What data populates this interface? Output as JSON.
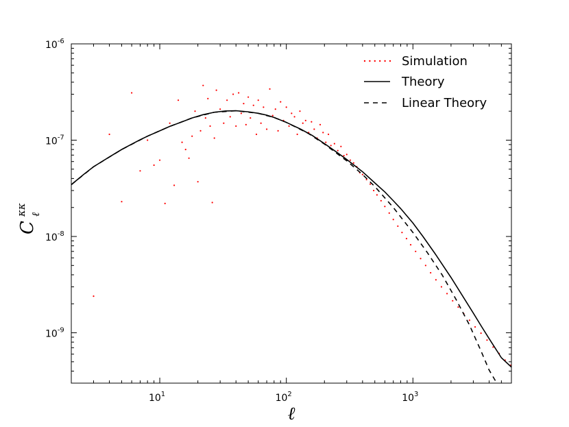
{
  "chart_data": {
    "type": "scatter",
    "xlabel": "ℓ",
    "ylabel": {
      "base": "C",
      "sub": "ℓ",
      "sup": "κκ"
    },
    "x_scale": "log",
    "y_scale": "log",
    "xlim": [
      2,
      6000
    ],
    "ylim": [
      3e-10,
      1e-06
    ],
    "x_ticks": [
      {
        "value": 10,
        "base": "10",
        "exp": "1"
      },
      {
        "value": 100,
        "base": "10",
        "exp": "2"
      },
      {
        "value": 1000,
        "base": "10",
        "exp": "3"
      }
    ],
    "y_ticks": [
      {
        "value": 1e-06,
        "base": "10",
        "exp": "-6"
      },
      {
        "value": 1e-07,
        "base": "10",
        "exp": "-7"
      },
      {
        "value": 1e-08,
        "base": "10",
        "exp": "-8"
      },
      {
        "value": 1e-09,
        "base": "10",
        "exp": "-9"
      }
    ],
    "grid": false,
    "legend_position": "top-right",
    "series": [
      {
        "name": "Simulation",
        "style": "red-dots",
        "color": "#ff0000",
        "points": [
          [
            3,
            2.4e-09
          ],
          [
            4,
            1.15e-07
          ],
          [
            5,
            2.3e-08
          ],
          [
            6,
            3.1e-07
          ],
          [
            7,
            4.8e-08
          ],
          [
            8,
            1e-07
          ],
          [
            9,
            5.5e-08
          ],
          [
            10,
            6.2e-08
          ],
          [
            11,
            2.2e-08
          ],
          [
            12,
            1.5e-07
          ],
          [
            13,
            3.4e-08
          ],
          [
            14,
            2.6e-07
          ],
          [
            15,
            9.5e-08
          ],
          [
            16,
            8e-08
          ],
          [
            17,
            6.5e-08
          ],
          [
            18,
            1.1e-07
          ],
          [
            19,
            2e-07
          ],
          [
            20,
            3.7e-08
          ],
          [
            21,
            1.25e-07
          ],
          [
            22,
            3.7e-07
          ],
          [
            23,
            1.7e-07
          ],
          [
            24,
            2.7e-07
          ],
          [
            25,
            1.4e-07
          ],
          [
            26,
            2.25e-08
          ],
          [
            27,
            1.05e-07
          ],
          [
            28,
            3.3e-07
          ],
          [
            30,
            2.1e-07
          ],
          [
            32,
            1.5e-07
          ],
          [
            34,
            2.6e-07
          ],
          [
            36,
            1.75e-07
          ],
          [
            38,
            3e-07
          ],
          [
            40,
            1.4e-07
          ],
          [
            42,
            3.1e-07
          ],
          [
            44,
            1.9e-07
          ],
          [
            46,
            2.4e-07
          ],
          [
            48,
            1.45e-07
          ],
          [
            50,
            2.8e-07
          ],
          [
            52,
            1.7e-07
          ],
          [
            55,
            2.3e-07
          ],
          [
            58,
            1.15e-07
          ],
          [
            60,
            2.6e-07
          ],
          [
            63,
            1.5e-07
          ],
          [
            66,
            2.2e-07
          ],
          [
            70,
            1.3e-07
          ],
          [
            74,
            3.4e-07
          ],
          [
            78,
            1.8e-07
          ],
          [
            82,
            2.1e-07
          ],
          [
            86,
            1.25e-07
          ],
          [
            90,
            2.5e-07
          ],
          [
            95,
            1.6e-07
          ],
          [
            100,
            2.2e-07
          ],
          [
            105,
            1.4e-07
          ],
          [
            110,
            1.9e-07
          ],
          [
            116,
            1.75e-07
          ],
          [
            122,
            1.15e-07
          ],
          [
            128,
            2e-07
          ],
          [
            135,
            1.5e-07
          ],
          [
            142,
            1.6e-07
          ],
          [
            150,
            1.2e-07
          ],
          [
            158,
            1.55e-07
          ],
          [
            166,
            1.3e-07
          ],
          [
            175,
            1.05e-07
          ],
          [
            185,
            1.45e-07
          ],
          [
            195,
            1.2e-07
          ],
          [
            205,
            9.5e-08
          ],
          [
            215,
            1.15e-07
          ],
          [
            225,
            8.8e-08
          ],
          [
            240,
            9.2e-08
          ],
          [
            255,
            7.8e-08
          ],
          [
            270,
            8.6e-08
          ],
          [
            285,
            6.9e-08
          ],
          [
            300,
            7.1e-08
          ],
          [
            320,
            6.2e-08
          ],
          [
            340,
            5.8e-08
          ],
          [
            360,
            5.3e-08
          ],
          [
            380,
            4.6e-08
          ],
          [
            400,
            4.4e-08
          ],
          [
            430,
            3.9e-08
          ],
          [
            460,
            3.5e-08
          ],
          [
            490,
            3e-08
          ],
          [
            520,
            2.7e-08
          ],
          [
            560,
            2.35e-08
          ],
          [
            600,
            2.05e-08
          ],
          [
            650,
            1.75e-08
          ],
          [
            700,
            1.5e-08
          ],
          [
            760,
            1.28e-08
          ],
          [
            820,
            1.1e-08
          ],
          [
            890,
            9.5e-09
          ],
          [
            960,
            8.2e-09
          ],
          [
            1050,
            7e-09
          ],
          [
            1150,
            5.9e-09
          ],
          [
            1260,
            5e-09
          ],
          [
            1380,
            4.2e-09
          ],
          [
            1520,
            3.55e-09
          ],
          [
            1680,
            3e-09
          ],
          [
            1860,
            2.55e-09
          ],
          [
            2060,
            2.15e-09
          ],
          [
            2280,
            1.85e-09
          ],
          [
            2520,
            1.58e-09
          ],
          [
            2800,
            1.35e-09
          ],
          [
            3100,
            1.15e-09
          ],
          [
            3450,
            9.9e-10
          ],
          [
            3850,
            8.4e-10
          ],
          [
            4300,
            7.1e-10
          ],
          [
            4800,
            6.1e-10
          ],
          [
            5350,
            5.2e-10
          ],
          [
            5900,
            4.6e-10
          ]
        ]
      },
      {
        "name": "Theory",
        "style": "solid-line",
        "color": "#000000",
        "points": [
          [
            2,
            3.45e-08
          ],
          [
            2.5,
            4.4e-08
          ],
          [
            3,
            5.3e-08
          ],
          [
            4,
            6.7e-08
          ],
          [
            5,
            8e-08
          ],
          [
            6,
            9.1e-08
          ],
          [
            7,
            1.01e-07
          ],
          [
            8,
            1.1e-07
          ],
          [
            10,
            1.25e-07
          ],
          [
            12,
            1.39e-07
          ],
          [
            15,
            1.55e-07
          ],
          [
            18,
            1.7e-07
          ],
          [
            22,
            1.84e-07
          ],
          [
            27,
            1.95e-07
          ],
          [
            33,
            2.01e-07
          ],
          [
            40,
            2.02e-07
          ],
          [
            50,
            1.97e-07
          ],
          [
            60,
            1.9e-07
          ],
          [
            70,
            1.82e-07
          ],
          [
            80,
            1.72e-07
          ],
          [
            100,
            1.53e-07
          ],
          [
            130,
            1.3e-07
          ],
          [
            160,
            1.12e-07
          ],
          [
            200,
            9.2e-08
          ],
          [
            250,
            7.5e-08
          ],
          [
            300,
            6.3e-08
          ],
          [
            400,
            4.7e-08
          ],
          [
            500,
            3.6e-08
          ],
          [
            600,
            2.9e-08
          ],
          [
            700,
            2.35e-08
          ],
          [
            800,
            1.95e-08
          ],
          [
            1000,
            1.38e-08
          ],
          [
            1200,
            1e-08
          ],
          [
            1500,
            6.6e-09
          ],
          [
            2000,
            3.75e-09
          ],
          [
            2500,
            2.35e-09
          ],
          [
            3000,
            1.6e-09
          ],
          [
            3500,
            1.15e-09
          ],
          [
            4000,
            8.7e-10
          ],
          [
            5000,
            5.5e-10
          ],
          [
            6000,
            4.4e-10
          ]
        ]
      },
      {
        "name": "Linear Theory",
        "style": "dashed-line",
        "color": "#000000",
        "points": [
          [
            2,
            3.45e-08
          ],
          [
            3,
            5.3e-08
          ],
          [
            5,
            8e-08
          ],
          [
            8,
            1.1e-07
          ],
          [
            12,
            1.39e-07
          ],
          [
            18,
            1.7e-07
          ],
          [
            27,
            1.95e-07
          ],
          [
            40,
            2.02e-07
          ],
          [
            60,
            1.9e-07
          ],
          [
            80,
            1.72e-07
          ],
          [
            100,
            1.53e-07
          ],
          [
            150,
            1.17e-07
          ],
          [
            200,
            9.1e-08
          ],
          [
            300,
            6.1e-08
          ],
          [
            400,
            4.4e-08
          ],
          [
            500,
            3.3e-08
          ],
          [
            700,
            2e-08
          ],
          [
            1000,
            1.1e-08
          ],
          [
            1300,
            6.8e-09
          ],
          [
            1700,
            4e-09
          ],
          [
            2200,
            2.2e-09
          ],
          [
            2800,
            1.2e-09
          ],
          [
            3500,
            6.2e-10
          ],
          [
            4000,
            4.1e-10
          ],
          [
            4600,
            3e-10
          ]
        ]
      }
    ]
  }
}
